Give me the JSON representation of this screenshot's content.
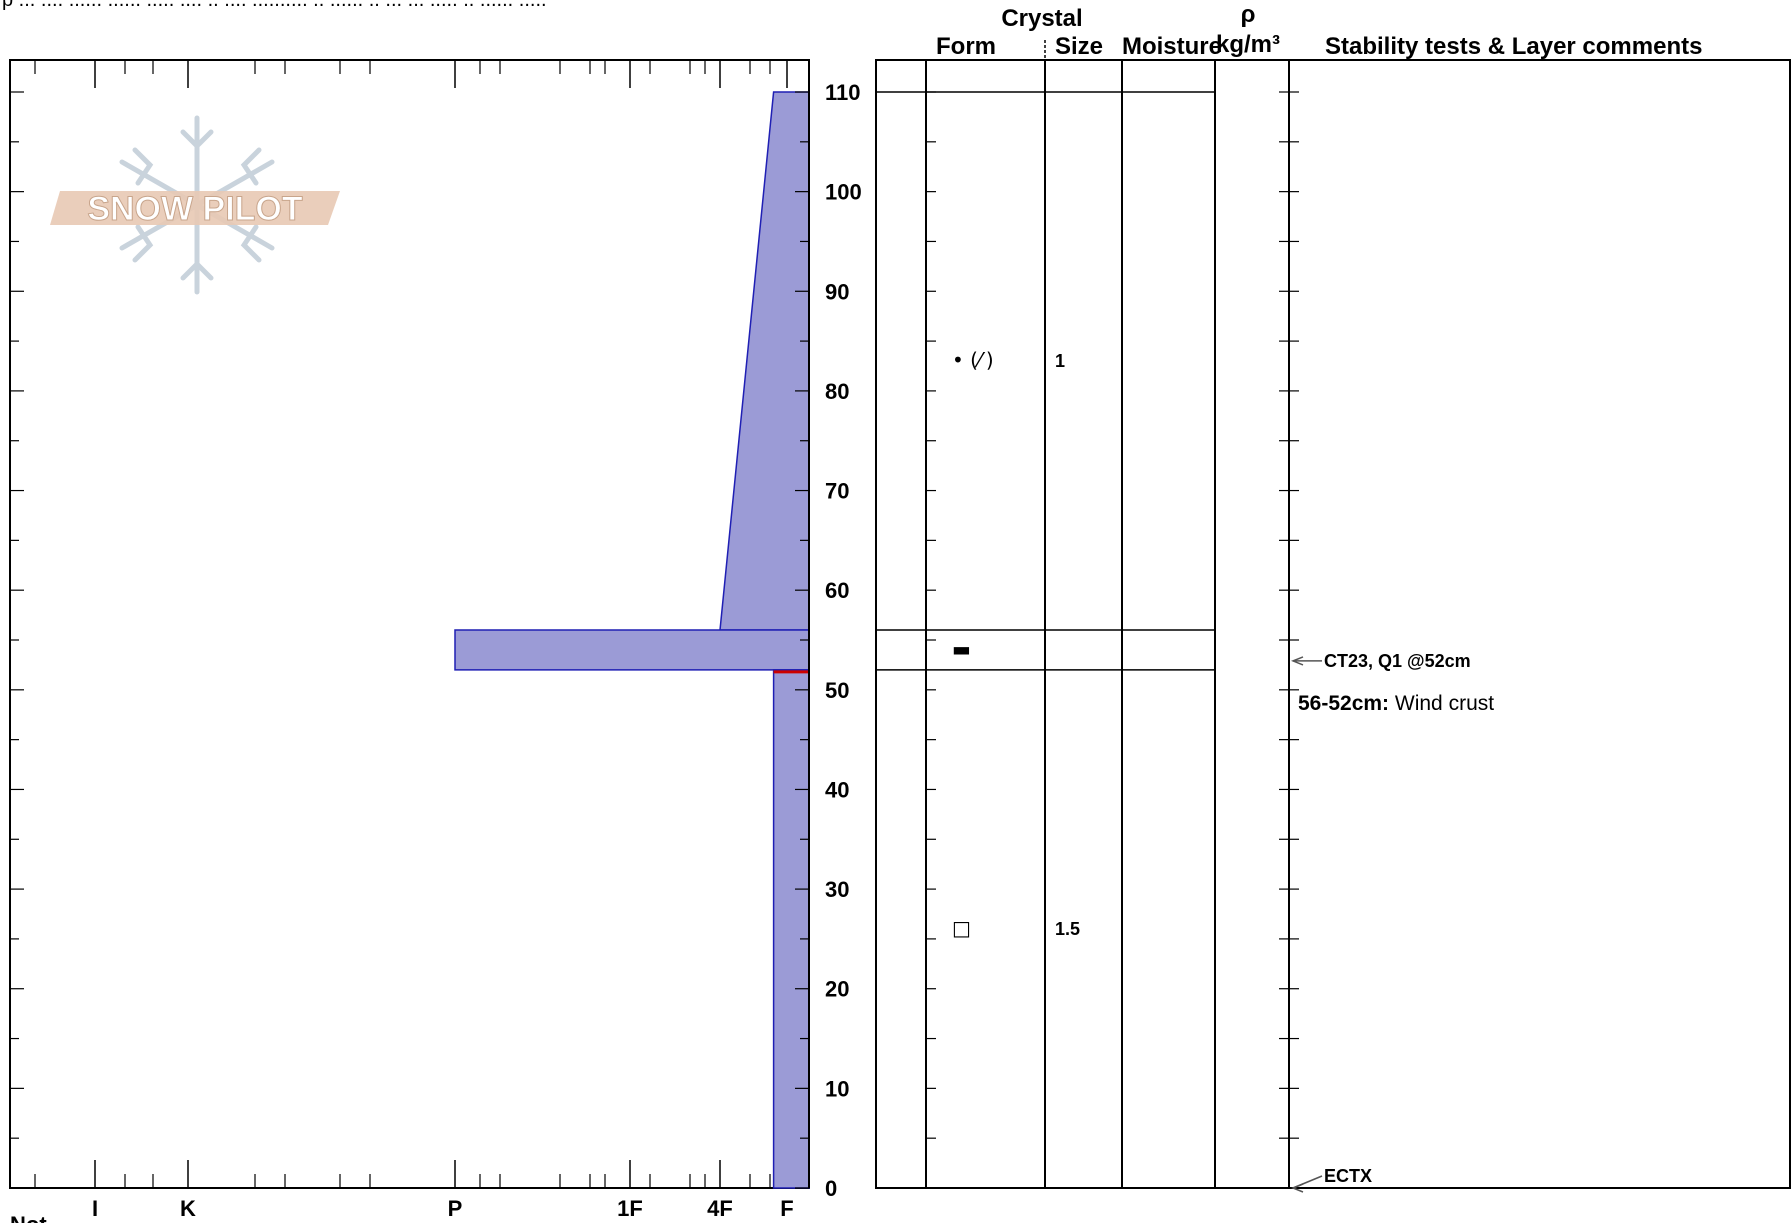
{
  "header": {
    "partial_text": "p ... .... ...... ...... ..... .... .. .... .......... .. ...... .. ... ... ..... .. ...... ....."
  },
  "columns": {
    "crystal": "Crystal",
    "form": "Form",
    "size": "Size",
    "moisture": "Moisture",
    "rho": "ρ",
    "density_unit": "kg/m³",
    "comments": "Stability tests & Layer comments"
  },
  "notes_label": "Not",
  "colors": {
    "fill": "#9b9bd6",
    "stroke": "#1f1fb4",
    "weak_layer": "#cc0000",
    "logo_text": "#e8c9b4",
    "logo_flake": "#c9d3dc"
  },
  "chart_data": {
    "type": "area",
    "title": "",
    "xlabel": "",
    "ylabel": "",
    "x_axis": {
      "labels": [
        "I",
        "K",
        "P",
        "1F",
        "4F",
        "F"
      ],
      "label_values": [
        6,
        5,
        3,
        2,
        1.5,
        1
      ]
    },
    "ylim": [
      0,
      110
    ],
    "y_ticks": [
      0,
      10,
      20,
      30,
      40,
      50,
      60,
      70,
      80,
      90,
      100,
      110
    ],
    "hardness_profile": [
      {
        "top": 110,
        "bottom": 56,
        "hardness_top": 1.1,
        "hardness_bottom": 1.5
      },
      {
        "top": 56,
        "bottom": 52,
        "hardness_top": 3,
        "hardness_bottom": 3
      },
      {
        "top": 52,
        "bottom": 0,
        "hardness_top": 1.1,
        "hardness_bottom": 1.1
      }
    ],
    "layer_boundaries": [
      110,
      56,
      52
    ],
    "weak_layer_depth": 52,
    "layers": [
      {
        "top": 110,
        "bottom": 56,
        "form": "• (⁄′)",
        "size": "1",
        "marker_depth": 83
      },
      {
        "top": 56,
        "bottom": 52,
        "form": "▬",
        "size": "",
        "marker_depth": 54
      },
      {
        "top": 52,
        "bottom": 0,
        "form": "□",
        "size": "1.5",
        "marker_depth": 26
      }
    ],
    "tests": [
      {
        "depth": 52,
        "text": "CT23, Q1 @52cm"
      },
      {
        "depth": 0,
        "text": "ECTX"
      }
    ],
    "comments": [
      {
        "range": "56-52cm:",
        "text": "Wind crust"
      }
    ]
  },
  "logo": {
    "text": "SNOW PILOT"
  }
}
